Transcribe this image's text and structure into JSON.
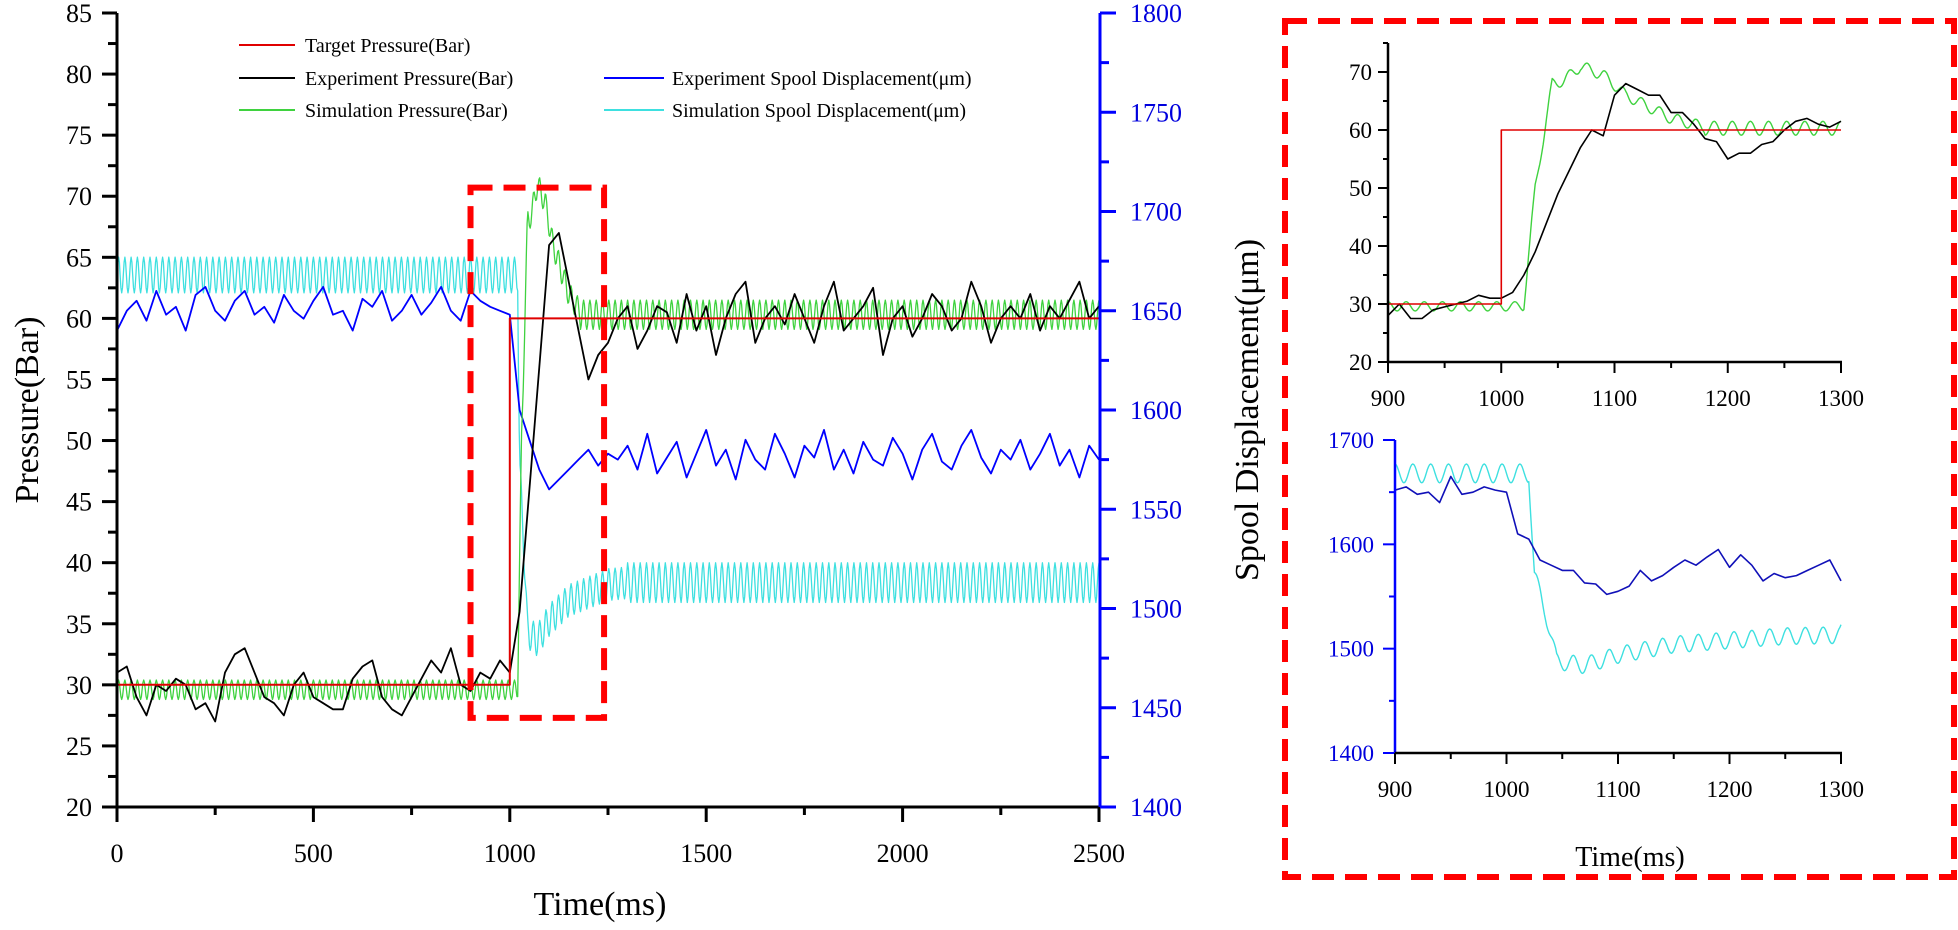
{
  "colors": {
    "target": "#e00000",
    "experiment_pressure": "#000000",
    "simulation_pressure": "#3fd23f",
    "experiment_spool_main": "#0000ff",
    "experiment_spool_inset": "#1010b8",
    "simulation_spool": "#3ee0e0",
    "highlight_box": "#ff0000",
    "right_axis": "#0000ff"
  },
  "chart_data": [
    {
      "type": "line",
      "id": "main",
      "xlabel": "Time(ms)",
      "ylabel": "Pressure(Bar)",
      "y2label": "Spool Displacement(μm)",
      "xlim": [
        0,
        2500
      ],
      "ylim": [
        20,
        85
      ],
      "y2lim": [
        1400,
        1800
      ],
      "xticks": [
        0,
        500,
        1000,
        1500,
        2000,
        2500
      ],
      "yticks": [
        20,
        25,
        30,
        35,
        40,
        45,
        50,
        55,
        60,
        65,
        70,
        75,
        80,
        85
      ],
      "y2ticks": [
        1400,
        1450,
        1500,
        1550,
        1600,
        1650,
        1700,
        1750,
        1800
      ],
      "grid": false,
      "legend_position": "top-center",
      "legend": [
        "Target Pressure(Bar)",
        "Experiment Pressure(Bar)",
        "Simulation Pressure(Bar)",
        "Experiment Spool Displacement(μm)",
        "Simulation Spool Displacement(μm)"
      ],
      "highlight_region": {
        "x": [
          900,
          1240
        ],
        "y": [
          27.3,
          70.7
        ]
      },
      "series": {
        "target_pressure": {
          "name": "Target Pressure(Bar)",
          "axis": "left",
          "points": [
            [
              0,
              30
            ],
            [
              1000,
              30
            ],
            [
              1000,
              60
            ],
            [
              2500,
              60
            ]
          ]
        },
        "experiment_pressure": {
          "name": "Experiment Pressure(Bar)",
          "axis": "left",
          "x_start": 0,
          "x_step": 25,
          "values": [
            31,
            31.5,
            29,
            27.5,
            30,
            29.5,
            30.5,
            30,
            28,
            28.5,
            27,
            31,
            32.5,
            33,
            31,
            29,
            28.5,
            27.5,
            30,
            31,
            29,
            28.5,
            28,
            28,
            30.5,
            31.5,
            32,
            29,
            28,
            27.5,
            29,
            30.5,
            32,
            31,
            33,
            30,
            29.5,
            31,
            30.5,
            32,
            31,
            36,
            46,
            56,
            66,
            67,
            63,
            59,
            55,
            57,
            58,
            60,
            61,
            57.5,
            59,
            61,
            60.5,
            58,
            62,
            59,
            61,
            57,
            60,
            62,
            63,
            58,
            60,
            61,
            59.5,
            62,
            60,
            58,
            61,
            63,
            59,
            60,
            61,
            62.5,
            57,
            60,
            61,
            58.5,
            60,
            62,
            61,
            59,
            60,
            63,
            61,
            58,
            60,
            61,
            60,
            62,
            59,
            61,
            60,
            61.5,
            63,
            60,
            61
          ]
        },
        "experiment_spool": {
          "name": "Experiment Spool Displacement(μm)",
          "axis": "right",
          "x_start": 0,
          "x_step": 25,
          "values": [
            1640,
            1650,
            1655,
            1645,
            1660,
            1648,
            1652,
            1640,
            1658,
            1662,
            1650,
            1645,
            1655,
            1660,
            1648,
            1652,
            1644,
            1658,
            1650,
            1646,
            1655,
            1662,
            1648,
            1650,
            1640,
            1656,
            1652,
            1660,
            1645,
            1650,
            1658,
            1648,
            1654,
            1662,
            1650,
            1645,
            1660,
            1655,
            1652,
            1650,
            1648,
            1600,
            1585,
            1570,
            1560,
            1565,
            1570,
            1575,
            1580,
            1572,
            1578,
            1575,
            1582,
            1570,
            1588,
            1568,
            1576,
            1584,
            1566,
            1578,
            1590,
            1572,
            1580,
            1565,
            1585,
            1575,
            1570,
            1588,
            1578,
            1566,
            1582,
            1576,
            1590,
            1570,
            1580,
            1568,
            1584,
            1575,
            1572,
            1586,
            1578,
            1565,
            1580,
            1588,
            1574,
            1570,
            1582,
            1590,
            1576,
            1568,
            1580,
            1575,
            1585,
            1570,
            1578,
            1588,
            1572,
            1580,
            1566,
            1582,
            1575
          ]
        },
        "simulation_pressure": {
          "name": "Simulation Pressure(Bar)",
          "axis": "left",
          "period_ms": 16,
          "pre": {
            "until": 1020,
            "mean": 29.6,
            "amplitude": 0.8
          },
          "transient": [
            [
              1020,
              30
            ],
            [
              1030,
              50
            ],
            [
              1040,
              62
            ],
            [
              1045,
              68
            ],
            [
              1055,
              68.5
            ],
            [
              1070,
              71
            ],
            [
              1090,
              69.5
            ],
            [
              1110,
              66
            ],
            [
              1130,
              64
            ],
            [
              1150,
              62
            ],
            [
              1180,
              60.5
            ]
          ],
          "post": {
            "from": 1180,
            "mean": 60.3,
            "amplitude": 1.2
          }
        },
        "simulation_spool": {
          "name": "Simulation Spool Displacement(μm)",
          "axis": "right",
          "period_ms": 16,
          "pre": {
            "until": 1020,
            "mean": 1668,
            "amplitude": 9
          },
          "transient": [
            [
              1020,
              1668
            ],
            [
              1025,
              1570
            ],
            [
              1035,
              1535
            ],
            [
              1045,
              1488
            ],
            [
              1070,
              1484
            ],
            [
              1100,
              1494
            ],
            [
              1150,
              1504
            ],
            [
              1200,
              1508
            ],
            [
              1250,
              1512
            ],
            [
              1300,
              1513
            ]
          ],
          "post": {
            "from": 1300,
            "mean": 1513,
            "amplitude": 10
          }
        }
      }
    },
    {
      "type": "line",
      "id": "inset_pressure",
      "xlim": [
        900,
        1300
      ],
      "ylim": [
        20,
        75
      ],
      "xticks": [
        900,
        1000,
        1100,
        1200,
        1300
      ],
      "yticks": [
        20,
        30,
        40,
        50,
        60,
        70
      ],
      "series": {
        "target_pressure": {
          "points": [
            [
              900,
              30
            ],
            [
              1000,
              30
            ],
            [
              1000,
              60
            ],
            [
              1300,
              60
            ]
          ]
        },
        "experiment_pressure": {
          "x_start": 900,
          "x_step": 10,
          "values": [
            28,
            30,
            27.5,
            27.5,
            29,
            29.5,
            30,
            30.5,
            31.5,
            31,
            31,
            32,
            35,
            39,
            44,
            49,
            53,
            57,
            60,
            59,
            66,
            68,
            67,
            66,
            66,
            63,
            63,
            61,
            58.5,
            58,
            55,
            56,
            56,
            57.5,
            58,
            60,
            61.5,
            62,
            61,
            60.5,
            61.5
          ]
        },
        "simulation_pressure": {
          "same_as": "main"
        }
      }
    },
    {
      "type": "line",
      "id": "inset_spool",
      "xlabel": "Time(ms)",
      "xlim": [
        900,
        1300
      ],
      "ylim": [
        1400,
        1700
      ],
      "xticks": [
        900,
        1000,
        1100,
        1200,
        1300
      ],
      "yticks": [
        1400,
        1500,
        1600,
        1700
      ],
      "series": {
        "experiment_spool": {
          "x_start": 900,
          "x_step": 10,
          "values": [
            1652,
            1655,
            1648,
            1650,
            1640,
            1665,
            1648,
            1650,
            1655,
            1652,
            1650,
            1610,
            1605,
            1585,
            1580,
            1575,
            1575,
            1563,
            1562,
            1552,
            1555,
            1560,
            1575,
            1565,
            1570,
            1578,
            1585,
            1580,
            1588,
            1595,
            1578,
            1590,
            1580,
            1565,
            1572,
            1568,
            1570,
            1575,
            1580,
            1585,
            1565
          ]
        },
        "simulation_spool": {
          "same_as": "main"
        }
      }
    }
  ]
}
